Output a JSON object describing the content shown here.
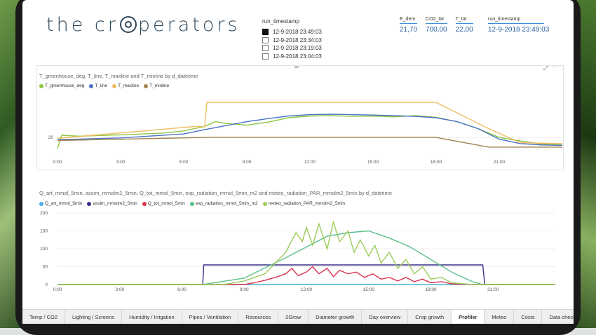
{
  "logo": {
    "text_pre": "the cr",
    "text_post": "perators"
  },
  "slicer": {
    "header": "run_timestamp",
    "items": [
      {
        "label": "12-9-2018 23:49:03",
        "checked": true
      },
      {
        "label": "12-9-2018 23:34:03",
        "checked": false
      },
      {
        "label": "12-9-2018 23:19:03",
        "checked": false
      },
      {
        "label": "12-9-2018 23:04:03",
        "checked": false
      }
    ]
  },
  "cards": {
    "e_dem": {
      "label": "E_dem",
      "value": "21,70"
    },
    "co2_tar": {
      "label": "CO2_tar",
      "value": "700,00"
    },
    "t_tar": {
      "label": "T_tar",
      "value": "22,00"
    },
    "run_ts": {
      "label": "run_timestamp",
      "value": "12-9-2018 23:49:03"
    }
  },
  "chart_data": [
    {
      "type": "line",
      "title": "T_greenhouse_deg, T_line, T_maxline and T_minline by d_datetime",
      "x_ticks": [
        "0:00",
        "3:00",
        "6:00",
        "9:00",
        "12:00",
        "15:00",
        "18:00",
        "21:00"
      ],
      "y_ticks": [
        "20"
      ],
      "x_range_hours": [
        0,
        24
      ],
      "series": [
        {
          "name": "T_greenhouse_deg",
          "color": "#8dc63f",
          "points": [
            [
              0,
              17.5
            ],
            [
              0.2,
              20.5
            ],
            [
              1,
              20.3
            ],
            [
              3,
              20.6
            ],
            [
              5,
              21.0
            ],
            [
              6,
              21.5
            ],
            [
              7,
              22.5
            ],
            [
              7.5,
              23.6
            ],
            [
              8,
              23.2
            ],
            [
              9,
              22.8
            ],
            [
              10,
              23.5
            ],
            [
              11,
              24.5
            ],
            [
              12,
              24.9
            ],
            [
              13,
              25.0
            ],
            [
              14,
              24.8
            ],
            [
              15,
              24.9
            ],
            [
              16,
              24.7
            ],
            [
              17,
              25.0
            ],
            [
              18,
              24.6
            ],
            [
              19,
              23.6
            ],
            [
              20,
              22.0
            ],
            [
              20.5,
              21.0
            ],
            [
              21,
              20.0
            ],
            [
              22,
              19.2
            ],
            [
              23,
              18.5
            ],
            [
              24,
              18.3
            ]
          ]
        },
        {
          "name": "T_line",
          "color": "#4a73c2",
          "points": [
            [
              0,
              19.5
            ],
            [
              3,
              19.9
            ],
            [
              6,
              20.8
            ],
            [
              7,
              21.8
            ],
            [
              8,
              22.7
            ],
            [
              9,
              23.6
            ],
            [
              10,
              24.3
            ],
            [
              11,
              24.9
            ],
            [
              12,
              25.2
            ],
            [
              13,
              25.3
            ],
            [
              14,
              25.2
            ],
            [
              15,
              25.1
            ],
            [
              16,
              25.0
            ],
            [
              17,
              24.8
            ],
            [
              18,
              24.5
            ],
            [
              19,
              23.6
            ],
            [
              20,
              22.0
            ],
            [
              21,
              19.6
            ],
            [
              22,
              18.6
            ],
            [
              23,
              18.3
            ],
            [
              24,
              18.2
            ]
          ]
        },
        {
          "name": "T_maxline",
          "color": "#f2bb60",
          "points": [
            [
              0,
              19.8
            ],
            [
              6.5,
              22.5
            ],
            [
              7,
              22.5
            ],
            [
              7.1,
              28.0
            ],
            [
              18,
              28.0
            ],
            [
              20.5,
              22.0
            ],
            [
              22,
              18.8
            ],
            [
              24,
              18.6
            ]
          ]
        },
        {
          "name": "T_minline",
          "color": "#a28451",
          "points": [
            [
              0,
              19.3
            ],
            [
              7,
              20.0
            ],
            [
              18,
              20.0
            ],
            [
              20.5,
              17.8
            ],
            [
              24,
              17.8
            ]
          ]
        }
      ]
    },
    {
      "type": "line",
      "title": "Q_art_mmol_5min, assim_mmolm2_5min, Q_tot_mmol_5min, exp_radiation_mmol_5min_m2 and meteo_radiation_PAR_mmolm2_5min by d_datetime",
      "x_ticks": [
        "0:00",
        "3:00",
        "6:00",
        "9:00",
        "12:00",
        "15:00",
        "18:00",
        "21:00"
      ],
      "y_ticks": [
        "0",
        "50",
        "100",
        "150",
        "200"
      ],
      "y_range": [
        0,
        200
      ],
      "x_range_hours": [
        0,
        24
      ],
      "series": [
        {
          "name": "Q_art_mmol_5min",
          "color": "#47b0e3",
          "points": [
            [
              0,
              0
            ],
            [
              24,
              0
            ]
          ]
        },
        {
          "name": "assim_mmolm2_5min",
          "color": "#3a2f8a",
          "points": [
            [
              0,
              0
            ],
            [
              7,
              0
            ],
            [
              7.05,
              55
            ],
            [
              20.5,
              55
            ],
            [
              20.6,
              0
            ],
            [
              24,
              0
            ]
          ]
        },
        {
          "name": "Q_tot_mmol_5min",
          "color": "#d9324e",
          "points": [
            [
              0,
              0
            ],
            [
              9,
              0
            ],
            [
              9.5,
              5
            ],
            [
              10,
              12
            ],
            [
              10.5,
              20
            ],
            [
              11,
              30
            ],
            [
              11.3,
              45
            ],
            [
              11.6,
              25
            ],
            [
              12,
              35
            ],
            [
              12.3,
              50
            ],
            [
              12.6,
              30
            ],
            [
              13,
              45
            ],
            [
              13.3,
              22
            ],
            [
              13.6,
              40
            ],
            [
              14,
              30
            ],
            [
              14.4,
              35
            ],
            [
              14.8,
              20
            ],
            [
              15.2,
              30
            ],
            [
              15.6,
              15
            ],
            [
              16,
              20
            ],
            [
              16.4,
              10
            ],
            [
              16.8,
              20
            ],
            [
              17.2,
              8
            ],
            [
              17.6,
              15
            ],
            [
              18,
              5
            ],
            [
              18.5,
              8
            ],
            [
              19,
              2
            ],
            [
              20,
              0
            ],
            [
              24,
              0
            ]
          ]
        },
        {
          "name": "exp_radiation_mmol_5min_m2",
          "color": "#5cc08a",
          "points": [
            [
              0,
              0
            ],
            [
              7,
              0
            ],
            [
              9,
              18
            ],
            [
              11,
              75
            ],
            [
              13,
              135
            ],
            [
              14,
              145
            ],
            [
              15,
              150
            ],
            [
              16,
              130
            ],
            [
              17,
              105
            ],
            [
              18,
              70
            ],
            [
              19,
              35
            ],
            [
              20,
              8
            ],
            [
              20.5,
              0
            ],
            [
              24,
              0
            ]
          ]
        },
        {
          "name": "meteo_radiation_PAR_mmolm2_5min",
          "color": "#9ccc5a",
          "points": [
            [
              0,
              0
            ],
            [
              8,
              0
            ],
            [
              9,
              10
            ],
            [
              10,
              30
            ],
            [
              10.5,
              60
            ],
            [
              11,
              90
            ],
            [
              11.5,
              145
            ],
            [
              11.8,
              120
            ],
            [
              12,
              160
            ],
            [
              12.3,
              110
            ],
            [
              12.6,
              170
            ],
            [
              13,
              100
            ],
            [
              13.3,
              175
            ],
            [
              13.6,
              120
            ],
            [
              14,
              150
            ],
            [
              14.3,
              90
            ],
            [
              14.6,
              125
            ],
            [
              15,
              80
            ],
            [
              15.3,
              110
            ],
            [
              15.6,
              60
            ],
            [
              16,
              90
            ],
            [
              16.4,
              45
            ],
            [
              16.8,
              70
            ],
            [
              17.2,
              30
            ],
            [
              17.6,
              50
            ],
            [
              18,
              15
            ],
            [
              18.5,
              20
            ],
            [
              19,
              5
            ],
            [
              20,
              0
            ],
            [
              24,
              0
            ]
          ]
        }
      ]
    }
  ],
  "tabs": [
    "Temp / CO2",
    "Lighting / Screens",
    "Humidity / Irrigation",
    "Pipes / Ventilation",
    "Resources",
    "2Grow",
    "Diameter growth",
    "Day overview",
    "Crop growth",
    "Profiler",
    "Meteo",
    "Costs",
    "Data checks",
    "+"
  ],
  "active_tab": "Profiler",
  "accent": "#e8c341"
}
